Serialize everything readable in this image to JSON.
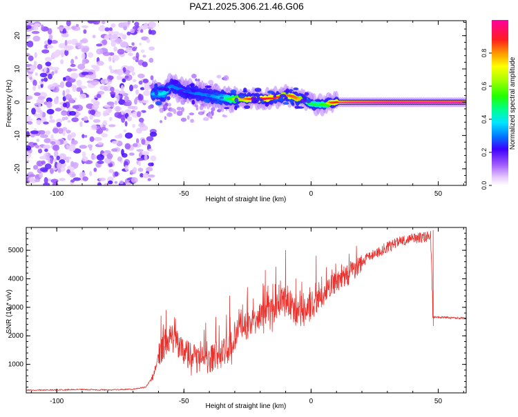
{
  "title": "PAZ1.2025.306.21.46.G06",
  "colors": {
    "snr_line": "#e8322e",
    "ridge_low": "#7a1fff",
    "ridge_mid": "#00dcc8",
    "ridge_high": "#ff2a3c"
  },
  "chart_data": [
    {
      "id": "spectrogram",
      "type": "heatmap",
      "title": "",
      "xlabel": "Height of straight line (km)",
      "ylabel": "Frequency (Hz)",
      "xlim": [
        -112,
        61
      ],
      "ylim": [
        -25,
        24.5
      ],
      "xticks": [
        -100,
        -50,
        0,
        50
      ],
      "xtick_labels": [
        "-100",
        "-50",
        "0",
        "50"
      ],
      "yticks": [
        -20,
        -10,
        0,
        10,
        20
      ],
      "ytick_labels": [
        "-20",
        "-10",
        "0",
        "10",
        "20"
      ],
      "noise_region": {
        "x_range": [
          -112,
          -62
        ],
        "y_range": [
          -25,
          24.5
        ],
        "amplitude": 0.15
      },
      "ridge": {
        "x": [
          -62,
          -58,
          -55,
          -52,
          -48,
          -44,
          -40,
          -36,
          -32,
          -28,
          -24,
          -20,
          -16,
          -12,
          -10,
          -8,
          -5,
          -2,
          0,
          3,
          6,
          8,
          15,
          30,
          45,
          61
        ],
        "frequency": [
          2.5,
          2.5,
          5.0,
          4.0,
          3.0,
          2.5,
          2.0,
          1.5,
          1.0,
          1.0,
          1.0,
          1.0,
          1.2,
          1.5,
          2.2,
          1.8,
          1.0,
          0.2,
          -0.5,
          -0.8,
          -0.6,
          0.0,
          0.0,
          0.0,
          0.0,
          0.0
        ],
        "amplitude": [
          0.35,
          0.4,
          0.3,
          0.3,
          0.28,
          0.3,
          0.3,
          0.35,
          0.5,
          0.75,
          0.85,
          0.9,
          0.9,
          0.85,
          0.8,
          0.85,
          0.8,
          0.6,
          0.5,
          0.5,
          0.55,
          0.85,
          0.95,
          1.0,
          1.0,
          1.0
        ]
      },
      "colorbar": {
        "label": "Normalized spectral amplitude",
        "range": [
          0.0,
          1.0
        ],
        "ticks": [
          0.0,
          0.2,
          0.4,
          0.6,
          0.8
        ],
        "tick_labels": [
          "0.0",
          "0.2",
          "0.4",
          "0.6",
          "0.8"
        ]
      }
    },
    {
      "id": "snr",
      "type": "line",
      "title": "",
      "xlabel": "Height of straight line (km)",
      "ylabel": "SNR (10 * v/v)",
      "xlim": [
        -112,
        61
      ],
      "ylim": [
        0,
        5800
      ],
      "xticks": [
        -100,
        -50,
        0,
        50
      ],
      "xtick_labels": [
        "-100",
        "-50",
        "0",
        "50"
      ],
      "yticks": [
        1000,
        2000,
        3000,
        4000,
        5000
      ],
      "ytick_labels": [
        "1000",
        "2000",
        "3000",
        "4000",
        "5000"
      ],
      "series": [
        {
          "name": "SNR",
          "x": [
            -112,
            -100,
            -90,
            -80,
            -70,
            -65,
            -62,
            -60,
            -58,
            -55,
            -52,
            -50,
            -46,
            -42,
            -40,
            -36,
            -32,
            -30,
            -28,
            -25,
            -22,
            -20,
            -18,
            -15,
            -12,
            -10,
            -8,
            -5,
            -2,
            0,
            3,
            6,
            10,
            15,
            20,
            25,
            30,
            35,
            40,
            45,
            47,
            48,
            50,
            55,
            61
          ],
          "y": [
            100,
            100,
            120,
            100,
            130,
            200,
            600,
            1300,
            1700,
            1900,
            1700,
            1400,
            1200,
            1100,
            1200,
            1300,
            1600,
            2000,
            2300,
            2300,
            2500,
            2700,
            2900,
            3000,
            3100,
            3400,
            3000,
            2700,
            2900,
            3000,
            3200,
            3600,
            3900,
            4200,
            4600,
            4900,
            5100,
            5300,
            5400,
            5450,
            5500,
            2650,
            2650,
            2640,
            2620
          ],
          "spikes": [
            {
              "x": -59,
              "y": 2700
            },
            {
              "x": -57,
              "y": 2900
            },
            {
              "x": -32,
              "y": 3400
            },
            {
              "x": -25,
              "y": 3700
            },
            {
              "x": -18,
              "y": 4300
            },
            {
              "x": -14,
              "y": 3800
            },
            {
              "x": -10,
              "y": 5000
            },
            {
              "x": -6,
              "y": 4000
            },
            {
              "x": 2,
              "y": 4800
            },
            {
              "x": 6,
              "y": 4400
            },
            {
              "x": 12,
              "y": 4500
            },
            {
              "x": 48,
              "y": 5700
            }
          ]
        }
      ]
    }
  ]
}
